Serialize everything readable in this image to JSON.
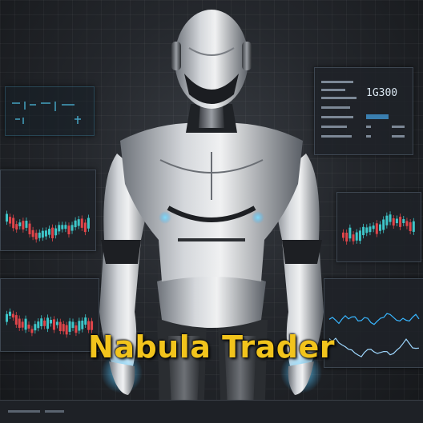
{
  "title": "Nabula Trader",
  "price_display": "1G300",
  "colors": {
    "title": "#f2c41c",
    "candle_up": "#3ec6c9",
    "candle_down": "#e0454a",
    "glow": "#38b6ff"
  },
  "subject": "robot-figure"
}
